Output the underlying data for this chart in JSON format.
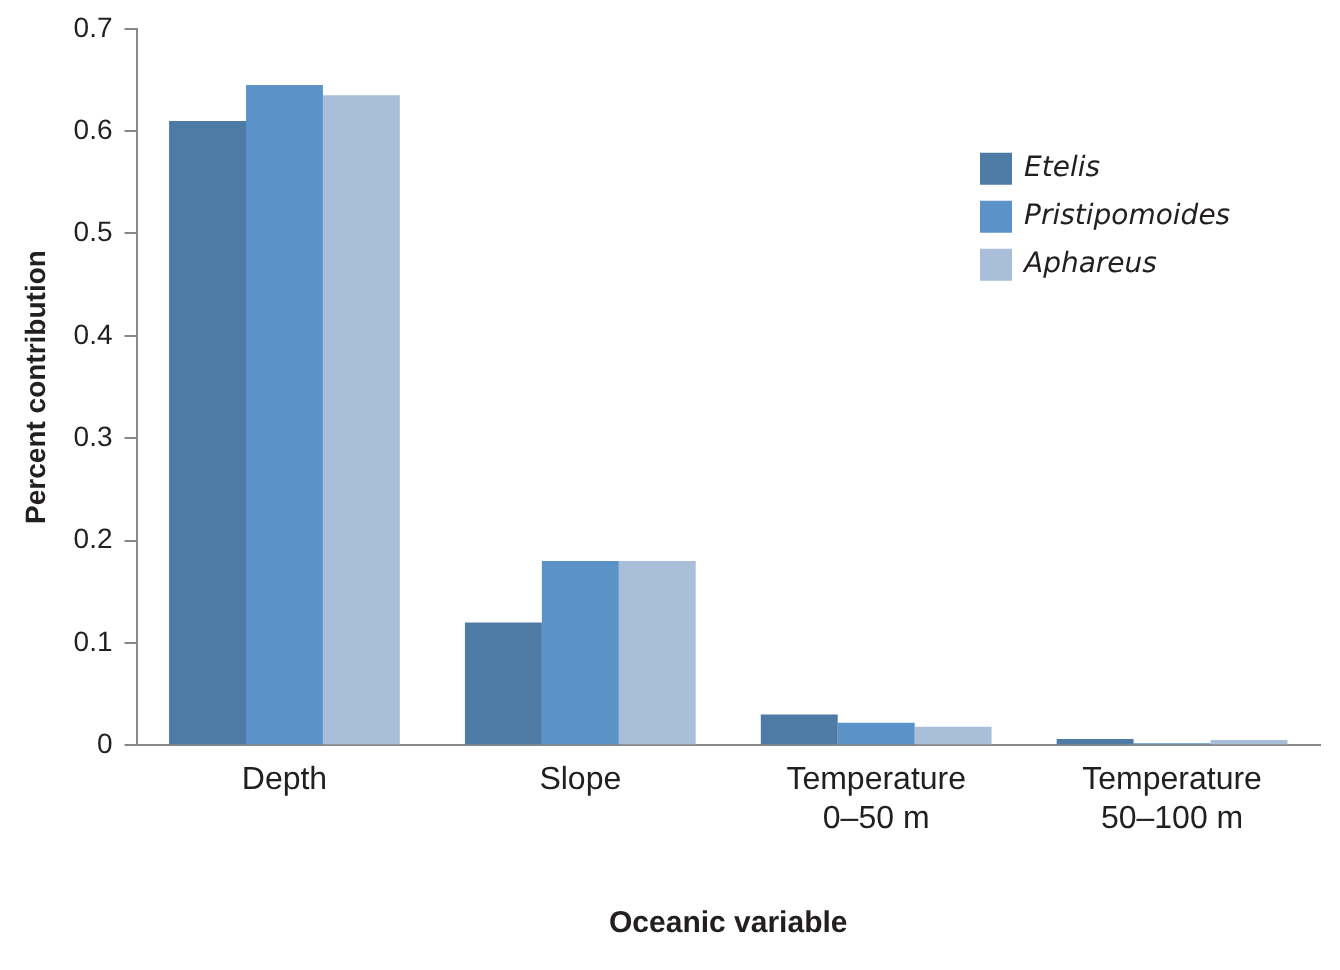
{
  "chart_data": {
    "type": "bar",
    "xlabel": "Oceanic variable",
    "ylabel": "Percent contribution",
    "categories": [
      "Depth",
      "Slope",
      "Temperature 0–50 m",
      "Temperature 50–100 m"
    ],
    "series": [
      {
        "name": "Etelis",
        "color": "#4e7ba6",
        "values": [
          0.61,
          0.12,
          0.03,
          0.006
        ]
      },
      {
        "name": "Pristipomoides",
        "color": "#5b93c9",
        "values": [
          0.645,
          0.18,
          0.022,
          0.002
        ]
      },
      {
        "name": "Aphareus",
        "color": "#a9bfd9",
        "values": [
          0.635,
          0.18,
          0.018,
          0.005
        ]
      }
    ],
    "ylim": [
      0,
      0.7
    ],
    "yticks": [
      0,
      0.1,
      0.2,
      0.3,
      0.4,
      0.5,
      0.6,
      0.7
    ],
    "grid": false,
    "legend": "top right"
  }
}
